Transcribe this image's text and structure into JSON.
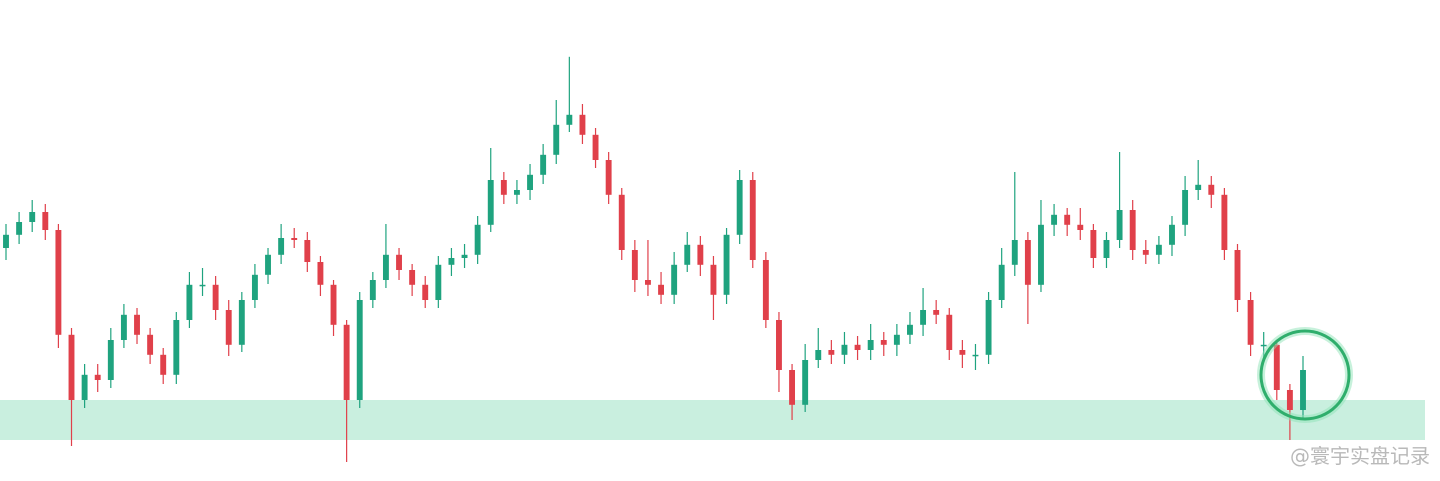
{
  "chart_data": {
    "type": "candlestick",
    "ylim": [
      0,
      120
    ],
    "up_color": "#1fa37f",
    "down_color": "#e0404a",
    "zone": [
      10,
      20
    ],
    "zone_color": "#c9efdf",
    "watermark": "@寰宇实盘记录",
    "open": [
      58,
      61.3,
      64.5,
      67,
      62.5,
      36.3,
      20,
      26.3,
      25,
      35,
      41.3,
      36.3,
      31.3,
      26.3,
      40,
      48.8,
      48.8,
      42.5,
      33.8,
      45,
      51.3,
      56.3,
      60.5,
      60,
      54.5,
      48.8,
      38.8,
      20,
      45,
      50,
      56.3,
      52.5,
      48.8,
      45,
      53.8,
      55.5,
      56.3,
      63.8,
      75,
      71.3,
      72.5,
      76.3,
      81.3,
      88.8,
      91.3,
      86.3,
      80,
      71.3,
      57.5,
      50,
      48.8,
      46.3,
      53.8,
      58.8,
      53.8,
      46.3,
      61.3,
      75,
      55,
      40,
      27.5,
      18.8,
      30,
      32.5,
      31.3,
      33.8,
      32.5,
      35,
      33.8,
      36.3,
      38.8,
      42.5,
      41.3,
      32.5,
      31.3,
      31.3,
      45,
      53.8,
      60,
      48.8,
      63.8,
      66.3,
      63.8,
      62.5,
      55.5,
      60,
      67.5,
      57.5,
      56.3,
      58.8,
      63.8,
      72.5,
      73.8,
      71.3,
      57.5,
      45,
      33.8,
      33.8,
      22.5,
      17.5
    ],
    "high": [
      64,
      67,
      70,
      69,
      64,
      38,
      29,
      29,
      38,
      44,
      43,
      38,
      33,
      42,
      52,
      53,
      51,
      45,
      47,
      54,
      58,
      64,
      63,
      62,
      56,
      50,
      40,
      47,
      52,
      64,
      58,
      54,
      51,
      56,
      58,
      59,
      66,
      83,
      77,
      75,
      79,
      84,
      95,
      105.8,
      94,
      88,
      82,
      73,
      60,
      60,
      52,
      57,
      62,
      61,
      56,
      63,
      77.5,
      77,
      57,
      42,
      29,
      34,
      38,
      35,
      37,
      36,
      39,
      37,
      39,
      42,
      48,
      45,
      43,
      35,
      34,
      47,
      58,
      77,
      62,
      70,
      69,
      68,
      68,
      64,
      62,
      82,
      70,
      60,
      61,
      66,
      76,
      80,
      76,
      73,
      59,
      47,
      37,
      35,
      24,
      31
    ],
    "low": [
      55,
      59,
      62,
      60,
      33,
      8.5,
      18,
      22,
      23,
      33,
      34,
      29,
      24,
      24,
      38,
      46,
      40,
      31,
      32,
      43,
      49,
      54,
      58,
      52,
      46,
      36,
      4.5,
      18,
      43,
      48,
      50,
      46,
      43,
      43,
      51,
      53,
      54,
      62,
      69,
      69,
      70,
      74,
      79,
      87,
      84,
      78,
      69,
      55,
      47,
      46,
      44,
      44,
      52,
      51,
      40,
      44,
      59,
      53,
      38,
      22,
      15,
      17,
      28,
      29,
      29,
      30,
      30,
      31,
      31,
      34,
      36,
      39,
      30,
      28,
      27.5,
      29,
      43,
      51,
      39,
      47,
      61,
      61,
      60,
      53,
      53,
      58,
      55,
      54,
      54,
      56,
      61,
      70,
      68,
      55,
      42,
      31,
      30,
      20,
      10,
      15
    ],
    "close": [
      61.3,
      64.5,
      67,
      62.5,
      36.3,
      20,
      26.3,
      25,
      35,
      41.3,
      36.3,
      31.3,
      26.3,
      40,
      48.8,
      48.8,
      42.5,
      33.8,
      45,
      51.3,
      56.3,
      60.5,
      60,
      54.5,
      48.8,
      38.8,
      20,
      45,
      50,
      56.3,
      52.5,
      48.8,
      45,
      53.8,
      55.5,
      56.3,
      63.8,
      75,
      71.3,
      72.5,
      76.3,
      81.3,
      88.8,
      91.3,
      86.3,
      80,
      71.3,
      57.5,
      50,
      48.8,
      46.3,
      53.8,
      58.8,
      53.8,
      46.3,
      61.3,
      75,
      55,
      40,
      27.5,
      18.8,
      30,
      32.5,
      31.3,
      33.8,
      32.5,
      35,
      33.8,
      36.3,
      38.8,
      42.5,
      41.3,
      32.5,
      31.3,
      31.3,
      45,
      53.8,
      60,
      48.8,
      63.8,
      66.3,
      63.8,
      62.5,
      55.5,
      60,
      67.5,
      57.5,
      56.3,
      58.8,
      63.8,
      72.5,
      73.8,
      71.3,
      57.5,
      45,
      33.8,
      33.8,
      22.5,
      17.5,
      27.5
    ]
  }
}
